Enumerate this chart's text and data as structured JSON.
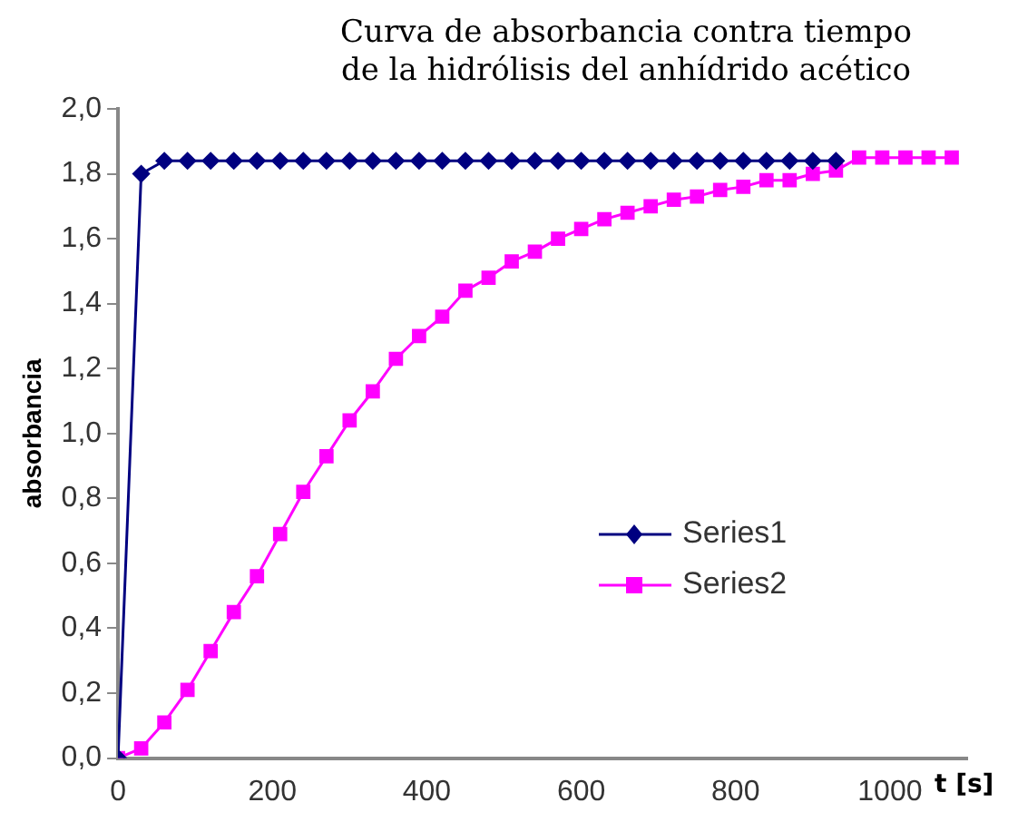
{
  "chart_data": {
    "type": "line",
    "title": "Curva de absorbancia contra tiempo de la hidrólisis del anhídrido acético",
    "ylabel": "absorbancia",
    "xlabel": "t [s]",
    "xlim": [
      0,
      1100
    ],
    "xticks": [
      0,
      200,
      400,
      600,
      800,
      1000
    ],
    "ylim": [
      0,
      2
    ],
    "yticks": [
      {
        "value": 0,
        "label": "0,0"
      },
      {
        "value": 0.2,
        "label": "0,2"
      },
      {
        "value": 0.4,
        "label": "0,4"
      },
      {
        "value": 0.6,
        "label": "0,6"
      },
      {
        "value": 0.8,
        "label": "0,8"
      },
      {
        "value": 1,
        "label": "1,0"
      },
      {
        "value": 1.2,
        "label": "1,2"
      },
      {
        "value": 1.4,
        "label": "1,4"
      },
      {
        "value": 1.6,
        "label": "1,6"
      },
      {
        "value": 1.8,
        "label": "1,8"
      },
      {
        "value": 2,
        "label": "2,0"
      }
    ],
    "grid": false,
    "legend": "right",
    "series": [
      {
        "name": "Series1",
        "color": "#000080",
        "marker": "diamond",
        "x": [
          0,
          30,
          60,
          90,
          120,
          150,
          180,
          210,
          240,
          270,
          300,
          330,
          360,
          390,
          420,
          450,
          480,
          510,
          540,
          570,
          600,
          630,
          660,
          690,
          720,
          750,
          780,
          810,
          840,
          870,
          900,
          930
        ],
        "values": [
          0,
          1.8,
          1.84,
          1.84,
          1.84,
          1.84,
          1.84,
          1.84,
          1.84,
          1.84,
          1.84,
          1.84,
          1.84,
          1.84,
          1.84,
          1.84,
          1.84,
          1.84,
          1.84,
          1.84,
          1.84,
          1.84,
          1.84,
          1.84,
          1.84,
          1.84,
          1.84,
          1.84,
          1.84,
          1.84,
          1.84,
          1.84
        ]
      },
      {
        "name": "Series2",
        "color": "#ff00ff",
        "marker": "square",
        "x": [
          0,
          30,
          60,
          90,
          120,
          150,
          180,
          210,
          240,
          270,
          300,
          330,
          360,
          390,
          420,
          450,
          480,
          510,
          540,
          570,
          600,
          630,
          660,
          690,
          720,
          750,
          780,
          810,
          840,
          870,
          900,
          930,
          960,
          990,
          1020,
          1050,
          1080
        ],
        "values": [
          0,
          0.03,
          0.11,
          0.21,
          0.33,
          0.45,
          0.56,
          0.69,
          0.82,
          0.93,
          1.04,
          1.13,
          1.23,
          1.3,
          1.36,
          1.44,
          1.48,
          1.53,
          1.56,
          1.6,
          1.63,
          1.66,
          1.68,
          1.7,
          1.72,
          1.73,
          1.75,
          1.76,
          1.78,
          1.78,
          1.8,
          1.81,
          1.85,
          1.85,
          1.85,
          1.85,
          1.85
        ]
      }
    ]
  }
}
